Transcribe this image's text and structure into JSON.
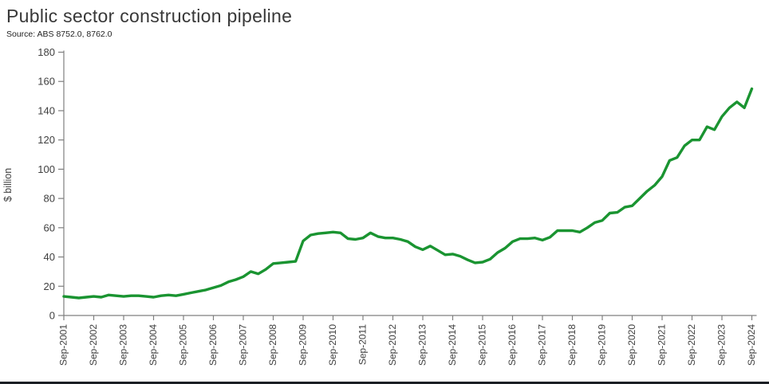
{
  "header": {
    "title": "Public sector construction pipeline",
    "source": "Source: ABS 8752.0, 8762.0"
  },
  "chart_data": {
    "type": "line",
    "title": "Public sector construction pipeline",
    "xlabel": "",
    "ylabel": "$ billion",
    "ylim": [
      0,
      180
    ],
    "y_ticks": [
      0,
      20,
      40,
      60,
      80,
      100,
      120,
      140,
      160,
      180
    ],
    "x_tick_labels": [
      "Sep-2001",
      "Sep-2002",
      "Sep-2003",
      "Sep-2004",
      "Sep-2005",
      "Sep-2006",
      "Sep-2007",
      "Sep-2008",
      "Sep-2009",
      "Sep-2010",
      "Sep-2011",
      "Sep-2012",
      "Sep-2013",
      "Sep-2014",
      "Sep-2015",
      "Sep-2016",
      "Sep-2017",
      "Sep-2018",
      "Sep-2019",
      "Sep-2020",
      "Sep-2021",
      "Sep-2022",
      "Sep-2023",
      "Sep-2024"
    ],
    "frequency": "quarterly",
    "x_start": "Sep-2001",
    "x_end": "Sep-2024",
    "grid": false,
    "legend": "none",
    "line_color": "#1a9431",
    "axis_color": "#7f7f7f",
    "tick_label_color": "#3f3f3f",
    "values": [
      13,
      12.5,
      12,
      12.5,
      13,
      12.5,
      14,
      13.5,
      13,
      13.5,
      13.5,
      13,
      12.5,
      13.5,
      14,
      13.5,
      14.5,
      15.5,
      16.5,
      17.5,
      19,
      20.5,
      23,
      24.5,
      26.5,
      30,
      28.5,
      31.5,
      35.5,
      36,
      36.5,
      37,
      51,
      55,
      56,
      56.5,
      57,
      56.5,
      52.5,
      52,
      53,
      56.5,
      54,
      53,
      53,
      52,
      50.5,
      47,
      45,
      47.5,
      44.5,
      41.5,
      42,
      40.5,
      38,
      36,
      36.5,
      38.5,
      43,
      46,
      50.5,
      52.5,
      52.5,
      53,
      51.5,
      53.5,
      58,
      58,
      58,
      57,
      60,
      63.5,
      65,
      70,
      70.5,
      74,
      75,
      80,
      85,
      89,
      95,
      106,
      108,
      116,
      120,
      120,
      129,
      127,
      136,
      142,
      146,
      142,
      155
    ]
  }
}
